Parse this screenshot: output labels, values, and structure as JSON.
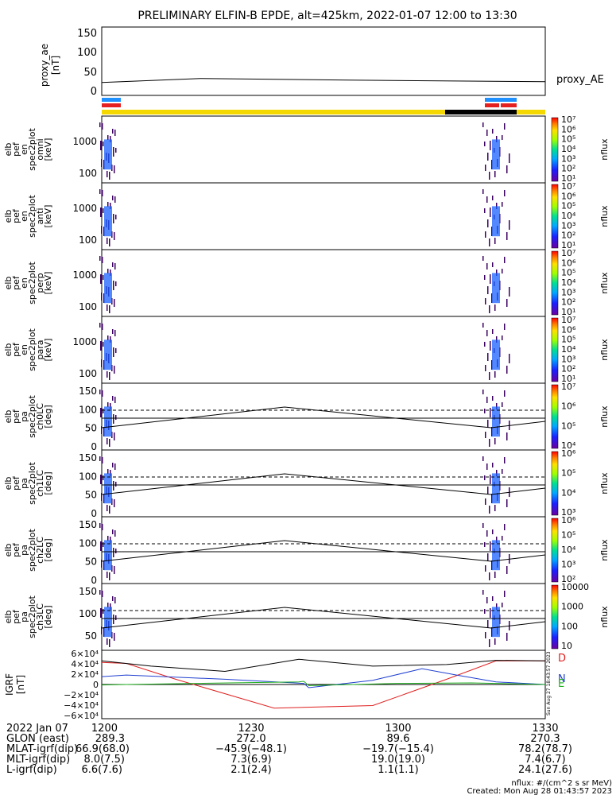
{
  "title": "PRELIMINARY ELFIN-B EPDE, alt=425km, 2022-01-07 12:00 to 13:30",
  "colors": {
    "bar_yellow": "#f5d800",
    "bar_black": "#000000",
    "bar_blue": "#1e90ff",
    "bar_red": "#e52020"
  },
  "chart_data": [
    {
      "id": "proxy_ae",
      "type": "line",
      "ylabel_lines": [
        "proxy_ae",
        "[nT]"
      ],
      "yticks": [
        "150",
        "100",
        "50",
        "0"
      ],
      "ylim": [
        -10,
        160
      ],
      "legend": "proxy_AE",
      "series": [
        {
          "x": [
            0,
            20,
            50,
            90
          ],
          "y": [
            22,
            32,
            28,
            24
          ]
        }
      ]
    },
    {
      "id": "spectra",
      "type": "heatmap",
      "panels": [
        {
          "label_lines": [
            "elb",
            "pef",
            "en",
            "spec2plot",
            "omni",
            "[keV]"
          ],
          "yticks": [
            "1000",
            "100"
          ],
          "cbar_ticks": [
            "10⁷",
            "10⁶",
            "10⁵",
            "10⁴",
            "10³",
            "10²",
            "10¹"
          ],
          "cbar_label": "nflux"
        },
        {
          "label_lines": [
            "elb",
            "pef",
            "en",
            "spec2plot",
            "anti",
            "[keV]"
          ],
          "yticks": [
            "1000",
            "100"
          ],
          "cbar_ticks": [
            "10⁷",
            "10⁶",
            "10⁵",
            "10⁴",
            "10³",
            "10²",
            "10¹"
          ],
          "cbar_label": "nflux"
        },
        {
          "label_lines": [
            "elb",
            "pef",
            "en",
            "spec2plot",
            "perp",
            "[keV]"
          ],
          "yticks": [
            "1000",
            "100"
          ],
          "cbar_ticks": [
            "10⁷",
            "10⁶",
            "10⁵",
            "10⁴",
            "10³",
            "10²",
            "10¹"
          ],
          "cbar_label": "nflux"
        },
        {
          "label_lines": [
            "elb",
            "pef",
            "en",
            "spec2plot",
            "para",
            "[keV]"
          ],
          "yticks": [
            "1000",
            "100"
          ],
          "cbar_ticks": [
            "10⁷",
            "10⁶",
            "10⁵",
            "10⁴",
            "10³",
            "10²",
            "10¹"
          ],
          "cbar_label": "nflux"
        },
        {
          "label_lines": [
            "elb",
            "pef",
            "pa",
            "spec2plot",
            "ch0LC",
            "[deg]"
          ],
          "yticks": [
            "150",
            "100",
            "50",
            "0"
          ],
          "cbar_ticks": [
            "10⁷",
            "10⁶",
            "10⁵",
            "10⁴"
          ],
          "cbar_label": "nflux"
        },
        {
          "label_lines": [
            "elb",
            "pef",
            "pa",
            "spec2plot",
            "ch1LC",
            "[deg]"
          ],
          "yticks": [
            "150",
            "100",
            "50",
            "0"
          ],
          "cbar_ticks": [
            "10⁶",
            "10⁵",
            "10⁴",
            "10³"
          ],
          "cbar_label": "nflux"
        },
        {
          "label_lines": [
            "elb",
            "pef",
            "pa",
            "spec2plot",
            "ch2LC",
            "[deg]"
          ],
          "yticks": [
            "150",
            "100",
            "50",
            "0"
          ],
          "cbar_ticks": [
            "10⁶",
            "10⁵",
            "10⁴",
            "10³",
            "10²"
          ],
          "cbar_label": "nflux"
        },
        {
          "label_lines": [
            "elb",
            "pef",
            "pa",
            "spec2plot",
            "ch3LC",
            "[deg]"
          ],
          "yticks": [
            "150",
            "100",
            "50"
          ],
          "cbar_ticks": [
            "10000",
            "1000",
            "100",
            "10"
          ],
          "cbar_label": "nflux"
        }
      ]
    },
    {
      "id": "igrf",
      "type": "line",
      "ylabel_lines": [
        "IGRF",
        "[nT]"
      ],
      "yticks": [
        "6×10⁴",
        "4×10⁴",
        "2×10⁴",
        "0",
        "−2×10⁴",
        "−4×10⁴",
        "−6×10⁴"
      ],
      "ylim": [
        -65000,
        65000
      ],
      "series": [
        {
          "name": "D",
          "color": "#e02020",
          "x": [
            0,
            5,
            15,
            35,
            55,
            70,
            80,
            90
          ],
          "y": [
            42000,
            40000,
            10000,
            -45000,
            -40000,
            10000,
            45000,
            45000
          ]
        },
        {
          "name": "N",
          "color": "#2040d0",
          "x": [
            0,
            5,
            25,
            41,
            42,
            55,
            65,
            72,
            80,
            90
          ],
          "y": [
            15000,
            18000,
            10000,
            2000,
            -6000,
            8000,
            30000,
            18000,
            5000,
            0
          ]
        },
        {
          "name": "E",
          "color": "#20b020",
          "x": [
            0,
            5,
            40,
            41,
            42,
            60,
            75,
            90
          ],
          "y": [
            -1000,
            0,
            5000,
            6000,
            -2000,
            2000,
            3000,
            0
          ]
        },
        {
          "name": "",
          "color": "#000000",
          "x": [
            0,
            10,
            25,
            40,
            55,
            70,
            80,
            90
          ],
          "y": [
            45000,
            35000,
            25000,
            48000,
            35000,
            38000,
            46000,
            45000
          ]
        }
      ]
    }
  ],
  "bottom": {
    "row_labels": [
      "2022 Jan 07",
      "GLON (east)",
      "MLAT-igrf(dip)",
      "MLT-igrf(dip)",
      "L-igrf(dip)"
    ],
    "columns": [
      [
        "1200",
        "289.3",
        "66.9(68.0)",
        "8.0(7.5)",
        "6.6(7.6)"
      ],
      [
        "1230",
        "272.0",
        "−45.9(−48.1)",
        "7.3(6.9)",
        "2.1(2.4)"
      ],
      [
        "1300",
        "89.6",
        "−19.7(−15.4)",
        "19.0(19.0)",
        "1.1(1.1)"
      ],
      [
        "1330",
        "270.3",
        "78.2(78.7)",
        "7.4(6.7)",
        "24.1(27.6)"
      ]
    ],
    "unit_note": "nflux: #/(cm^2 s sr MeV)",
    "created": "Created: Mon Aug 28 01:43:57 2023",
    "side_stamp": "Sun Aug 27 18:43:57 2023"
  }
}
